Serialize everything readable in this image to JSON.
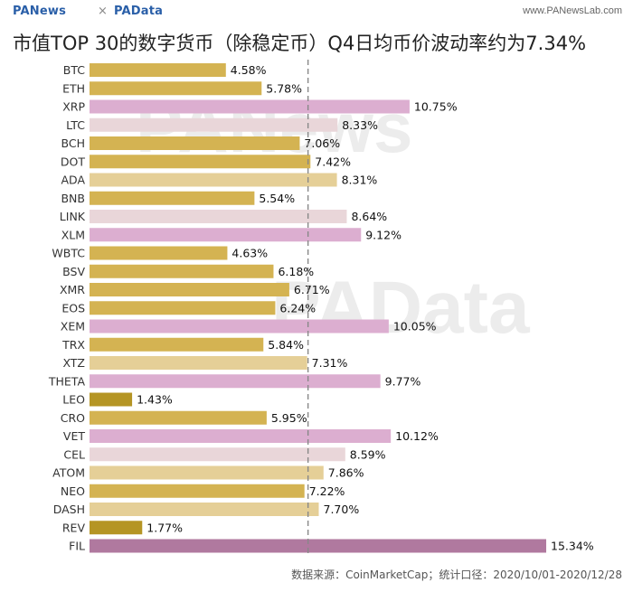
{
  "header": {
    "logo_left": "PANews",
    "separator": "×",
    "logo_right": "PAData",
    "site_url": "www.PANewsLab.com"
  },
  "title": "市值TOP 30的数字货币（除稳定币）Q4日均币价波动率约为7.34%",
  "source": "数据来源：CoinMarketCap；统计口径：2020/10/01-2020/12/28",
  "watermarks": [
    "PANews",
    "PAData"
  ],
  "colors": {
    "gold": "#d4b352",
    "dark_gold": "#b59524",
    "beige": "#e5cf97",
    "light_pink": "#e9d6d9",
    "pink": "#dcaed0",
    "purple": "#b0799f",
    "reference_line": "#888888"
  },
  "chart_data": {
    "type": "bar",
    "orientation": "horizontal",
    "categories": [
      "BTC",
      "ETH",
      "XRP",
      "LTC",
      "BCH",
      "DOT",
      "ADA",
      "BNB",
      "LINK",
      "XLM",
      "WBTC",
      "BSV",
      "XMR",
      "EOS",
      "XEM",
      "TRX",
      "XTZ",
      "THETA",
      "LEO",
      "CRO",
      "VET",
      "CEL",
      "ATOM",
      "NEO",
      "DASH",
      "REV",
      "FIL"
    ],
    "values": [
      4.58,
      5.78,
      10.75,
      8.33,
      7.06,
      7.42,
      8.31,
      5.54,
      8.64,
      9.12,
      4.63,
      6.18,
      6.71,
      6.24,
      10.05,
      5.84,
      7.31,
      9.77,
      1.43,
      5.95,
      10.12,
      8.59,
      7.86,
      7.22,
      7.7,
      1.77,
      15.34
    ],
    "labels": [
      "4.58%",
      "5.78%",
      "10.75%",
      "8.33%",
      "7.06%",
      "7.42%",
      "8.31%",
      "5.54%",
      "8.64%",
      "9.12%",
      "4.63%",
      "6.18%",
      "6.71%",
      "6.24%",
      "10.05%",
      "5.84%",
      "7.31%",
      "9.77%",
      "1.43%",
      "5.95%",
      "10.12%",
      "8.59%",
      "7.86%",
      "7.22%",
      "7.70%",
      "1.77%",
      "15.34%"
    ],
    "bar_colors": [
      "#d4b352",
      "#d4b352",
      "#dcaed0",
      "#e9d6d9",
      "#d4b352",
      "#d4b352",
      "#e5cf97",
      "#d4b352",
      "#e9d6d9",
      "#dcaed0",
      "#d4b352",
      "#d4b352",
      "#d4b352",
      "#d4b352",
      "#dcaed0",
      "#d4b352",
      "#e5cf97",
      "#dcaed0",
      "#b59524",
      "#d4b352",
      "#dcaed0",
      "#e9d6d9",
      "#e5cf97",
      "#d4b352",
      "#e5cf97",
      "#b59524",
      "#b0799f"
    ],
    "reference_value": 7.34,
    "xlim": [
      0,
      15.4
    ],
    "grid": false,
    "legend": "none"
  }
}
